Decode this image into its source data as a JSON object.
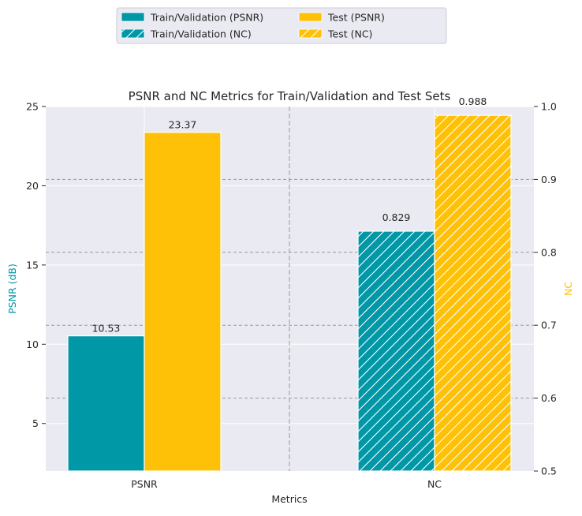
{
  "chart_data": {
    "type": "bar",
    "title": "PSNR and NC Metrics for Train/Validation and Test Sets",
    "xlabel": "Metrics",
    "categories": [
      "PSNR",
      "NC"
    ],
    "left_axis": {
      "label": "PSNR (dB)",
      "label_color": "#0097A7",
      "ylim": [
        2,
        25
      ],
      "ticks": [
        "5",
        "10",
        "15",
        "20",
        "25"
      ]
    },
    "right_axis": {
      "label": "NC",
      "label_color": "#FFC107",
      "ylim": [
        0.5,
        1.0
      ],
      "ticks": [
        "0.5",
        "0.6",
        "0.7",
        "0.8",
        "0.9",
        "1.0"
      ]
    },
    "series": [
      {
        "name": "Train/Validation (PSNR)",
        "category": "PSNR",
        "axis": "left",
        "value": 10.53,
        "label": "10.53",
        "color": "#0097A7",
        "hatch": false
      },
      {
        "name": "Test (PSNR)",
        "category": "PSNR",
        "axis": "left",
        "value": 23.37,
        "label": "23.37",
        "color": "#FFC107",
        "hatch": false
      },
      {
        "name": "Train/Validation (NC)",
        "category": "NC",
        "axis": "right",
        "value": 0.829,
        "label": "0.829",
        "color": "#0097A7",
        "hatch": true
      },
      {
        "name": "Test (NC)",
        "category": "NC",
        "axis": "right",
        "value": 0.988,
        "label": "0.988",
        "color": "#FFC107",
        "hatch": true
      }
    ],
    "legend": {
      "placement": "top-center",
      "columns": 2,
      "order": [
        "Train/Validation (PSNR)",
        "Train/Validation (NC)",
        "Test (PSNR)",
        "Test (NC)"
      ]
    },
    "grid": true,
    "background": "#EAEAF2"
  }
}
